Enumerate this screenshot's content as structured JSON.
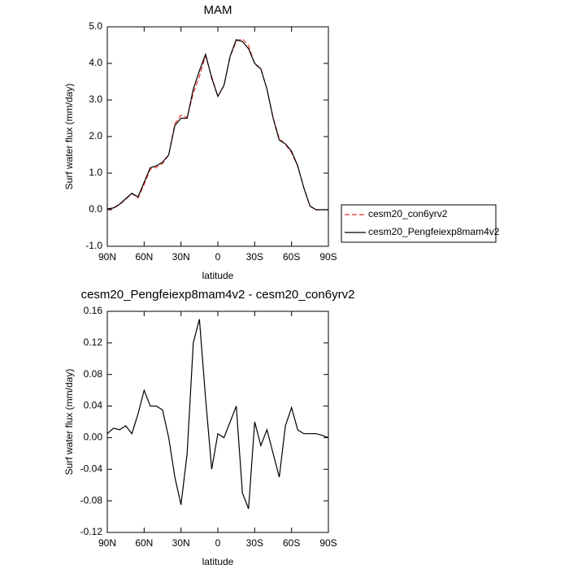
{
  "chart_data": [
    {
      "type": "line",
      "title": "MAM",
      "xlabel": "latitude",
      "ylabel": "Surf water flux (mm/day)",
      "x": [
        90,
        85,
        80,
        75,
        70,
        65,
        60,
        55,
        50,
        45,
        40,
        35,
        30,
        25,
        20,
        15,
        10,
        5,
        0,
        -5,
        -10,
        -15,
        -20,
        -25,
        -30,
        -35,
        -40,
        -45,
        -50,
        -55,
        -60,
        -65,
        -70,
        -75,
        -80,
        -85,
        -90
      ],
      "series": [
        {
          "name": "cesm20_con6yrv2",
          "color": "#e8322a",
          "linestyle": "dashed",
          "values": [
            0.015,
            0.038,
            0.14,
            0.285,
            0.445,
            0.32,
            0.69,
            1.11,
            1.16,
            1.265,
            1.5,
            2.35,
            2.585,
            2.52,
            3.18,
            3.65,
            4.2,
            3.64,
            3.095,
            3.4,
            4.18,
            4.61,
            4.67,
            4.49,
            3.98,
            3.86,
            3.29,
            2.52,
            1.95,
            1.785,
            1.562,
            1.19,
            0.595,
            0.095,
            -0.005,
            -0.003,
            0
          ]
        },
        {
          "name": "cesm20_Pengfeiexp8mam4v2",
          "color": "#000000",
          "linestyle": "solid",
          "values": [
            0.02,
            0.05,
            0.15,
            0.3,
            0.45,
            0.35,
            0.75,
            1.15,
            1.2,
            1.3,
            1.5,
            2.3,
            2.5,
            2.5,
            3.3,
            3.8,
            4.25,
            3.6,
            3.1,
            3.4,
            4.2,
            4.65,
            4.6,
            4.4,
            4.0,
            3.85,
            3.3,
            2.5,
            1.9,
            1.8,
            1.6,
            1.2,
            0.6,
            0.1,
            0.0,
            0.0,
            0.0
          ]
        }
      ],
      "xlim": [
        90,
        -90
      ],
      "xticks": [
        {
          "value": 90,
          "label": "90N"
        },
        {
          "value": 60,
          "label": "60N"
        },
        {
          "value": 30,
          "label": "30N"
        },
        0,
        {
          "value": -30,
          "label": "30S"
        },
        {
          "value": -60,
          "label": "60S"
        },
        {
          "value": -90,
          "label": "90S"
        }
      ],
      "ylim": [
        -1,
        5
      ],
      "yticks": [
        {
          "value": -1,
          "label": "-1.0"
        },
        {
          "value": 0,
          "label": "0.0"
        },
        {
          "value": 1,
          "label": "1.0"
        },
        {
          "value": 2,
          "label": "2.0"
        },
        {
          "value": 3,
          "label": "3.0"
        },
        {
          "value": 4,
          "label": "4.0"
        },
        {
          "value": 5,
          "label": "5.0"
        }
      ],
      "legend": "right"
    },
    {
      "type": "line",
      "title": "cesm20_Pengfeiexp8mam4v2 - cesm20_con6yrv2",
      "xlabel": "latitude",
      "ylabel": "Surf water flux (mm/day)",
      "x": [
        90,
        85,
        80,
        75,
        70,
        65,
        60,
        55,
        50,
        45,
        40,
        35,
        30,
        25,
        20,
        15,
        10,
        5,
        0,
        -5,
        -10,
        -15,
        -20,
        -25,
        -30,
        -35,
        -40,
        -45,
        -50,
        -55,
        -60,
        -65,
        -70,
        -75,
        -80,
        -85,
        -90
      ],
      "color": "#000000",
      "values": [
        0.005,
        0.012,
        0.01,
        0.015,
        0.005,
        0.03,
        0.06,
        0.04,
        0.04,
        0.035,
        0.0,
        -0.05,
        -0.085,
        -0.02,
        0.12,
        0.15,
        0.05,
        -0.04,
        0.005,
        0.0,
        0.02,
        0.04,
        -0.07,
        -0.09,
        0.02,
        -0.01,
        0.01,
        -0.02,
        -0.05,
        0.015,
        0.038,
        0.01,
        0.005,
        0.005,
        0.005,
        0.003,
        0.0
      ],
      "xlim": [
        90,
        -90
      ],
      "xticks": [
        {
          "value": 90,
          "label": "90N"
        },
        {
          "value": 60,
          "label": "60N"
        },
        {
          "value": 30,
          "label": "30N"
        },
        0,
        {
          "value": -30,
          "label": "30S"
        },
        {
          "value": -60,
          "label": "60S"
        },
        {
          "value": -90,
          "label": "90S"
        }
      ],
      "ylim": [
        -0.12,
        0.16
      ],
      "yticks": [
        -0.12,
        -0.08,
        -0.04,
        {
          "value": 0,
          "label": "0.00"
        },
        0.04,
        0.08,
        0.12,
        0.16
      ]
    }
  ]
}
